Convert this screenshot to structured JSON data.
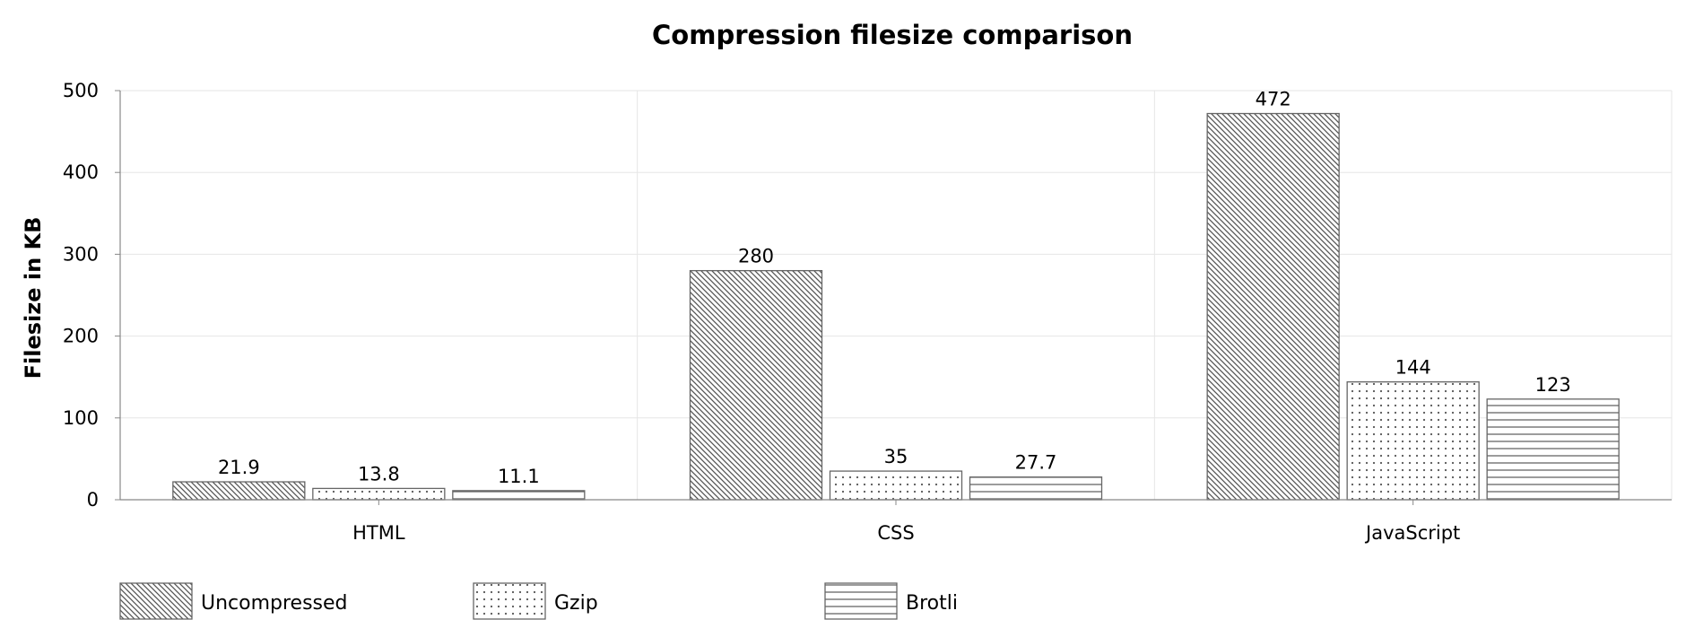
{
  "chart_data": {
    "type": "bar",
    "title": "Compression filesize comparison",
    "xlabel": "",
    "ylabel": "Filesize in KB",
    "ylim": [
      0,
      500
    ],
    "yticks": [
      "0",
      "100",
      "200",
      "300",
      "400",
      "500"
    ],
    "categories": [
      "HTML",
      "CSS",
      "JavaScript"
    ],
    "series": [
      {
        "name": "Uncompressed",
        "values": [
          21.9,
          280,
          472
        ],
        "labels": [
          "21.9",
          "280",
          "472"
        ],
        "pattern": "diagonal-hatch"
      },
      {
        "name": "Gzip",
        "values": [
          13.8,
          35,
          144
        ],
        "labels": [
          "13.8",
          "35",
          "144"
        ],
        "pattern": "dots"
      },
      {
        "name": "Brotli",
        "values": [
          11.1,
          27.7,
          123
        ],
        "labels": [
          "11.1",
          "27.7",
          "123"
        ],
        "pattern": "horizontal-lines"
      }
    ],
    "grid": true,
    "legend_position": "bottom-left",
    "colors": {
      "bar_stroke": "#666666",
      "pattern": "#555555",
      "grid": "#e6e6e6",
      "axis": "#888888"
    }
  }
}
